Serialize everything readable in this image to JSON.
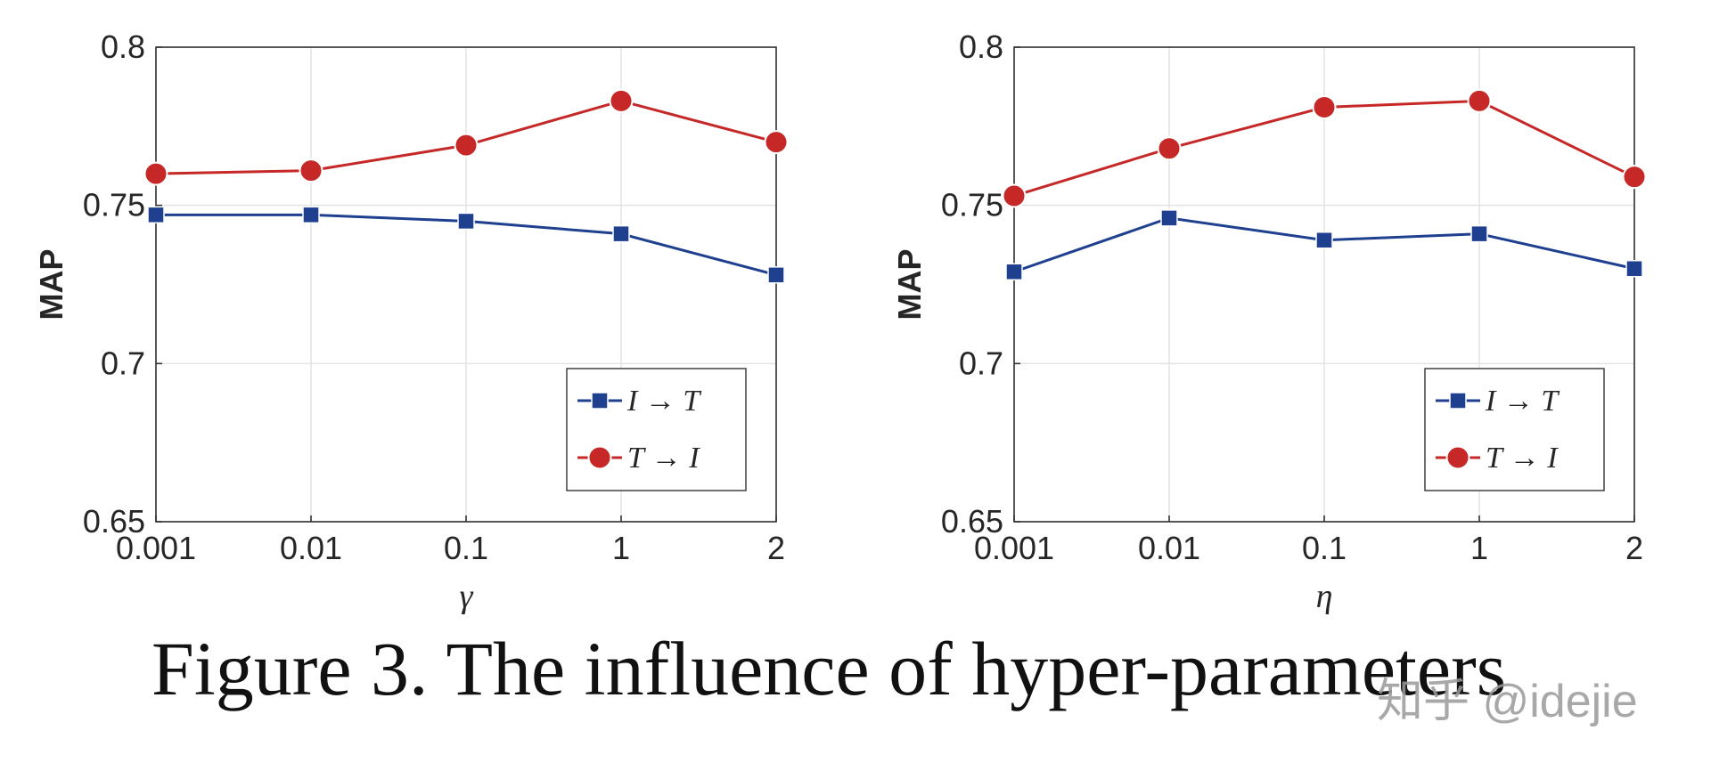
{
  "chart_data": [
    {
      "type": "line",
      "categories": [
        "0.001",
        "0.01",
        "0.1",
        "1",
        "2"
      ],
      "xlabel": "γ",
      "ylabel": "MAP",
      "ylim": [
        0.65,
        0.8
      ],
      "yticks": [
        "0.65",
        "0.7",
        "0.75",
        "0.8"
      ],
      "grid": true,
      "legend_position": "bottom-right",
      "series": [
        {
          "name": "I → T",
          "marker": "square",
          "color": "#1f3f8f",
          "values": [
            0.747,
            0.747,
            0.745,
            0.741,
            0.728
          ]
        },
        {
          "name": "T → I",
          "marker": "circle",
          "color": "#c62828",
          "values": [
            0.76,
            0.761,
            0.769,
            0.783,
            0.77
          ]
        }
      ]
    },
    {
      "type": "line",
      "categories": [
        "0.001",
        "0.01",
        "0.1",
        "1",
        "2"
      ],
      "xlabel": "η",
      "ylabel": "MAP",
      "ylim": [
        0.65,
        0.8
      ],
      "yticks": [
        "0.65",
        "0.7",
        "0.75",
        "0.8"
      ],
      "grid": true,
      "legend_position": "bottom-right",
      "series": [
        {
          "name": "I → T",
          "marker": "square",
          "color": "#1f3f8f",
          "values": [
            0.729,
            0.746,
            0.739,
            0.741,
            0.73
          ]
        },
        {
          "name": "T → I",
          "marker": "circle",
          "color": "#c62828",
          "values": [
            0.753,
            0.768,
            0.781,
            0.783,
            0.759
          ]
        }
      ]
    }
  ],
  "caption": "Figure 3. The influence of hyper-parameters",
  "watermark": "知乎 @idejie"
}
